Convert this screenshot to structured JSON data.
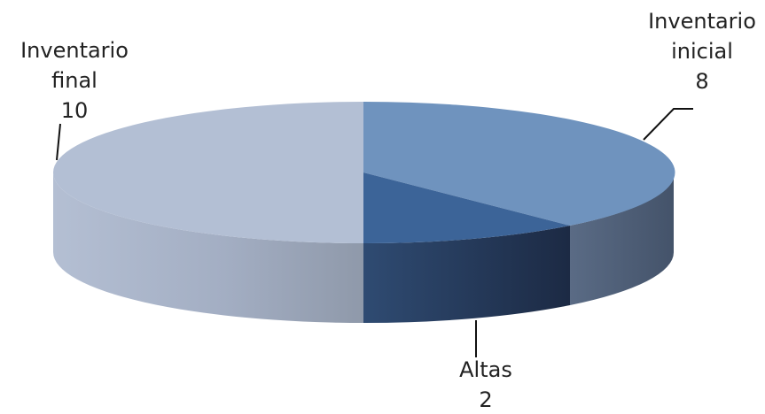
{
  "chart_data": {
    "type": "pie",
    "style": "3d",
    "slices": [
      {
        "name_lines": [
          "Inventario",
          "inicial"
        ],
        "value": 8,
        "color": "#6f93be"
      },
      {
        "name_lines": [
          "Altas"
        ],
        "value": 2,
        "color": "#3c6498"
      },
      {
        "name_lines": [
          "Inventario",
          "final"
        ],
        "value": 10,
        "color": "#b3bfd4"
      }
    ]
  }
}
